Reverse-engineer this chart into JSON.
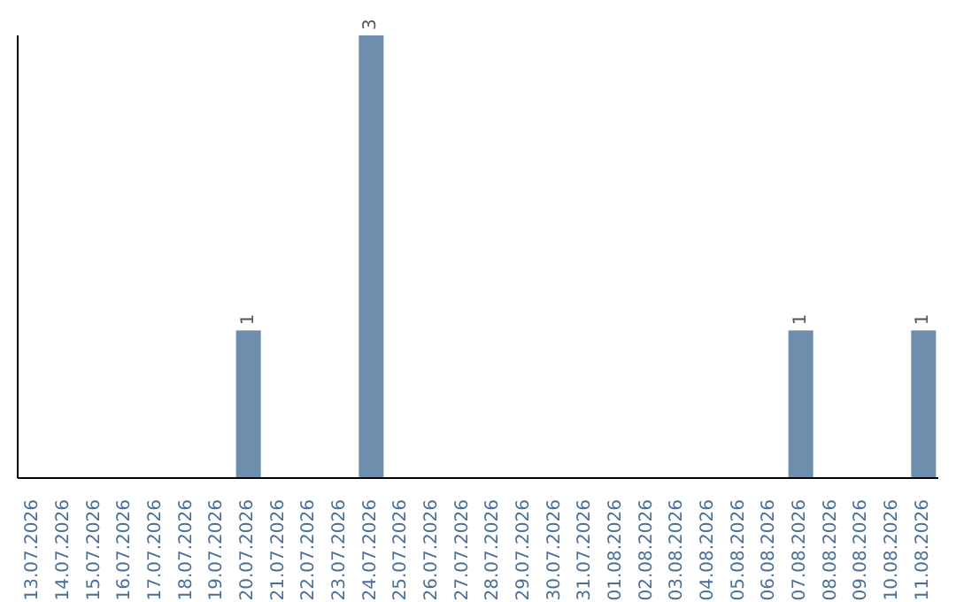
{
  "chart_data": {
    "type": "bar",
    "categories": [
      "13.07.2026",
      "14.07.2026",
      "15.07.2026",
      "16.07.2026",
      "17.07.2026",
      "18.07.2026",
      "19.07.2026",
      "20.07.2026",
      "21.07.2026",
      "22.07.2026",
      "23.07.2026",
      "24.07.2026",
      "25.07.2026",
      "26.07.2026",
      "27.07.2026",
      "28.07.2026",
      "29.07.2026",
      "30.07.2026",
      "31.07.2026",
      "01.08.2026",
      "02.08.2026",
      "03.08.2026",
      "04.08.2026",
      "05.08.2026",
      "06.08.2026",
      "07.08.2026",
      "08.08.2026",
      "09.08.2026",
      "10.08.2026",
      "11.08.2026"
    ],
    "values": [
      0,
      0,
      0,
      0,
      0,
      0,
      0,
      1,
      0,
      0,
      0,
      3,
      0,
      0,
      0,
      0,
      0,
      0,
      0,
      0,
      0,
      0,
      0,
      0,
      0,
      1,
      0,
      0,
      0,
      1
    ],
    "value_labels": [
      null,
      null,
      null,
      null,
      null,
      null,
      null,
      "1",
      null,
      null,
      null,
      "3",
      null,
      null,
      null,
      null,
      null,
      null,
      null,
      null,
      null,
      null,
      null,
      null,
      null,
      "1",
      null,
      null,
      null,
      "1"
    ],
    "color": "#6d8fad",
    "grid": false,
    "legend": false
  }
}
